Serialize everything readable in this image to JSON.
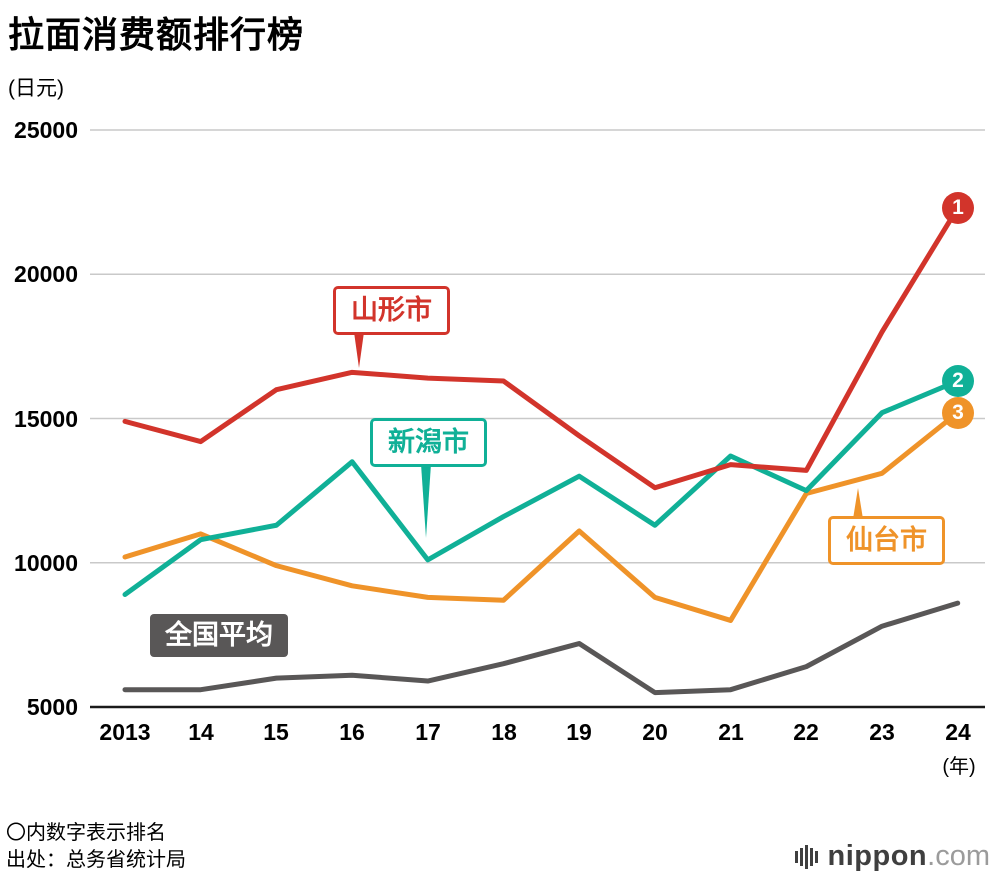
{
  "title": "拉面消费额排行榜",
  "y_unit": "(日元)",
  "x_unit": "(年)",
  "footnote": "〇内数字表示排名",
  "source": "出处：总务省统计局",
  "logo": {
    "brand": "nippon",
    "suffix": ".com"
  },
  "chart_data": {
    "type": "line",
    "title": "拉面消费额排行榜",
    "y_axis_label": "(日元)",
    "x_axis_label": "(年)",
    "x": [
      "2013",
      "14",
      "15",
      "16",
      "17",
      "18",
      "19",
      "20",
      "21",
      "22",
      "23",
      "24"
    ],
    "ylim": [
      5000,
      25000
    ],
    "yticks": [
      5000,
      10000,
      15000,
      20000,
      25000
    ],
    "grid": "horizontal",
    "legend_position": "inline-callouts",
    "series": [
      {
        "name": "山形市",
        "rank": "1",
        "color": "#d2342b",
        "values": [
          14900,
          14200,
          16000,
          16600,
          16400,
          16300,
          14400,
          12600,
          13400,
          13200,
          18000,
          22300
        ]
      },
      {
        "name": "新潟市",
        "rank": "2",
        "color": "#10b097",
        "values": [
          8900,
          10800,
          11300,
          13500,
          10100,
          11600,
          13000,
          11300,
          13700,
          12500,
          15200,
          16300
        ]
      },
      {
        "name": "仙台市",
        "rank": "3",
        "color": "#ef9329",
        "values": [
          10200,
          11000,
          9900,
          9200,
          8800,
          8700,
          11100,
          8800,
          8000,
          12400,
          13100,
          15200
        ]
      },
      {
        "name": "全国平均",
        "color": "#595757",
        "values": [
          5600,
          5600,
          6000,
          6100,
          5900,
          6500,
          7200,
          5500,
          5600,
          6400,
          7800,
          8600
        ]
      }
    ]
  }
}
